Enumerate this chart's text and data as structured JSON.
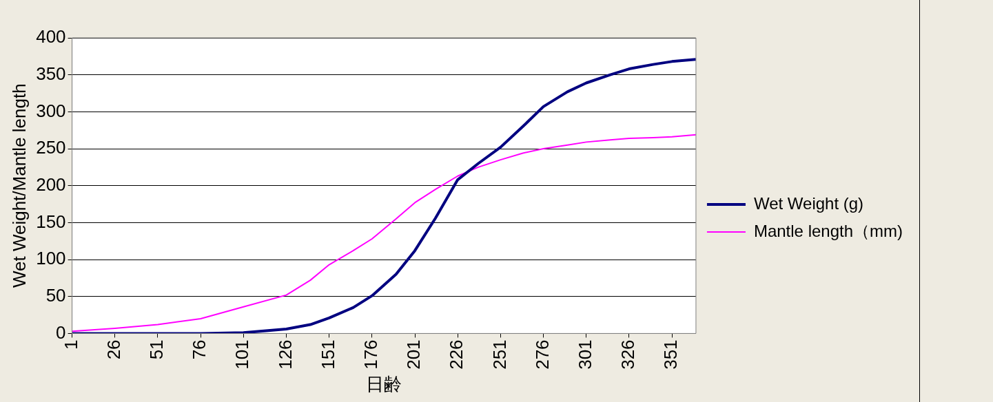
{
  "chart_data": {
    "type": "line",
    "xlabel": "日齢",
    "ylabel": "Wet Weight/Mantle length",
    "xlim": [
      1,
      365
    ],
    "xticks": [
      1,
      26,
      51,
      76,
      101,
      126,
      151,
      176,
      201,
      226,
      251,
      276,
      301,
      326,
      351
    ],
    "ylim": [
      0,
      400
    ],
    "yticks": [
      0,
      50,
      100,
      150,
      200,
      250,
      300,
      350,
      400
    ],
    "grid": "y",
    "legend": "right",
    "marker": "none",
    "line_style": "solid",
    "series": [
      {
        "name": "Wet Weight (g)",
        "color": "#000080",
        "x": [
          1,
          26,
          51,
          76,
          101,
          126,
          140,
          151,
          165,
          176,
          190,
          201,
          213,
          226,
          238,
          251,
          264,
          276,
          290,
          301,
          315,
          326,
          340,
          351,
          365
        ],
        "values": [
          0,
          0,
          0,
          0,
          1,
          6,
          12,
          21,
          35,
          51,
          80,
          112,
          156,
          208,
          230,
          252,
          280,
          307,
          327,
          339,
          350,
          358,
          364,
          368,
          371
        ]
      },
      {
        "name": "Mantle length（mm)",
        "color": "#ff00ff",
        "x": [
          1,
          26,
          51,
          76,
          101,
          126,
          140,
          151,
          165,
          176,
          190,
          201,
          213,
          226,
          238,
          251,
          264,
          276,
          290,
          301,
          315,
          326,
          340,
          351,
          365
        ],
        "values": [
          3,
          7,
          12,
          20,
          36,
          52,
          72,
          93,
          112,
          128,
          155,
          177,
          195,
          213,
          225,
          235,
          244,
          250,
          255,
          259,
          262,
          264,
          265,
          266,
          269
        ]
      }
    ]
  }
}
